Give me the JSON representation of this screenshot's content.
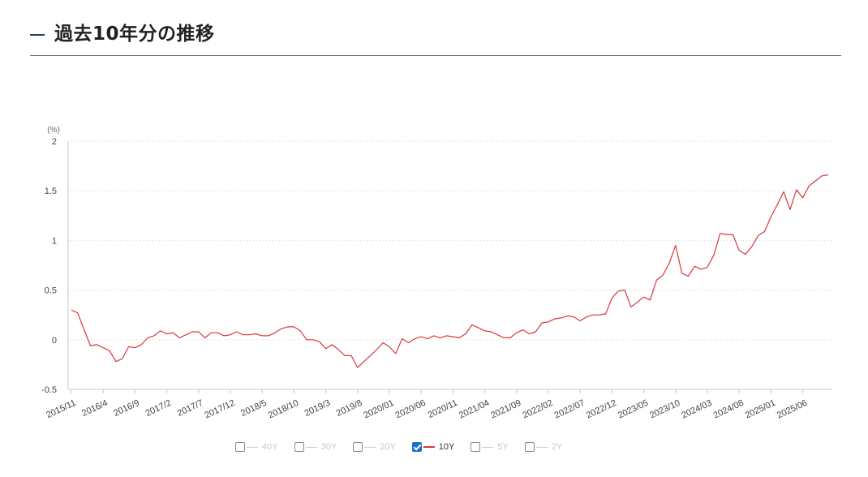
{
  "header": {
    "title": "過去10年分の推移",
    "accent_color": "#1f3f66"
  },
  "legend": {
    "items": [
      {
        "label": "40Y",
        "checked": false
      },
      {
        "label": "30Y",
        "checked": false
      },
      {
        "label": "20Y",
        "checked": false
      },
      {
        "label": "10Y",
        "checked": true,
        "color": "#d9373b"
      },
      {
        "label": "5Y",
        "checked": false
      },
      {
        "label": "2Y",
        "checked": false
      }
    ]
  },
  "chart_data": {
    "type": "line",
    "title": "過去10年分の推移",
    "xlabel": "",
    "ylabel": "(%)",
    "ylim": [
      -0.5,
      2
    ],
    "yticks": [
      2,
      1.5,
      1,
      0.5,
      0,
      -0.5
    ],
    "ytick_labels": [
      "2",
      "1.5",
      "1",
      "0.5",
      "0",
      "-0.5"
    ],
    "grid": "horizontal dotted",
    "legend_position": "bottom",
    "xtick_labels": [
      "2015/11",
      "2016/4",
      "2016/9",
      "2017/2",
      "2017/7",
      "2017/12",
      "2018/5",
      "2018/10",
      "2019/3",
      "2019/8",
      "2020/01",
      "2020/06",
      "2020/11",
      "2021/04",
      "2021/09",
      "2022/02",
      "2022/07",
      "2022/12",
      "2023/05",
      "2023/10",
      "2024/03",
      "2024/08",
      "2025/01",
      "2025/06"
    ],
    "series": [
      {
        "name": "10Y",
        "color": "#d9373b",
        "start": "2015/11",
        "interval_months": 1,
        "values": [
          0.3,
          0.27,
          0.1,
          -0.06,
          -0.05,
          -0.08,
          -0.11,
          -0.22,
          -0.19,
          -0.07,
          -0.08,
          -0.05,
          0.02,
          0.04,
          0.09,
          0.06,
          0.07,
          0.02,
          0.05,
          0.08,
          0.08,
          0.02,
          0.07,
          0.07,
          0.04,
          0.05,
          0.08,
          0.05,
          0.05,
          0.06,
          0.04,
          0.04,
          0.07,
          0.11,
          0.13,
          0.13,
          0.09,
          0.0,
          0.0,
          -0.02,
          -0.09,
          -0.05,
          -0.1,
          -0.16,
          -0.16,
          -0.28,
          -0.22,
          -0.16,
          -0.1,
          -0.03,
          -0.07,
          -0.14,
          0.01,
          -0.03,
          0.01,
          0.03,
          0.01,
          0.04,
          0.02,
          0.04,
          0.03,
          0.02,
          0.06,
          0.15,
          0.12,
          0.09,
          0.08,
          0.05,
          0.02,
          0.02,
          0.07,
          0.1,
          0.06,
          0.08,
          0.17,
          0.18,
          0.21,
          0.22,
          0.24,
          0.23,
          0.19,
          0.23,
          0.25,
          0.25,
          0.26,
          0.42,
          0.49,
          0.5,
          0.33,
          0.38,
          0.43,
          0.4,
          0.6,
          0.65,
          0.77,
          0.95,
          0.67,
          0.64,
          0.74,
          0.71,
          0.73,
          0.85,
          1.07,
          1.06,
          1.06,
          0.9,
          0.86,
          0.94,
          1.05,
          1.09,
          1.24,
          1.36,
          1.49,
          1.31,
          1.51,
          1.43,
          1.55,
          1.6,
          1.65,
          1.66
        ]
      }
    ]
  }
}
